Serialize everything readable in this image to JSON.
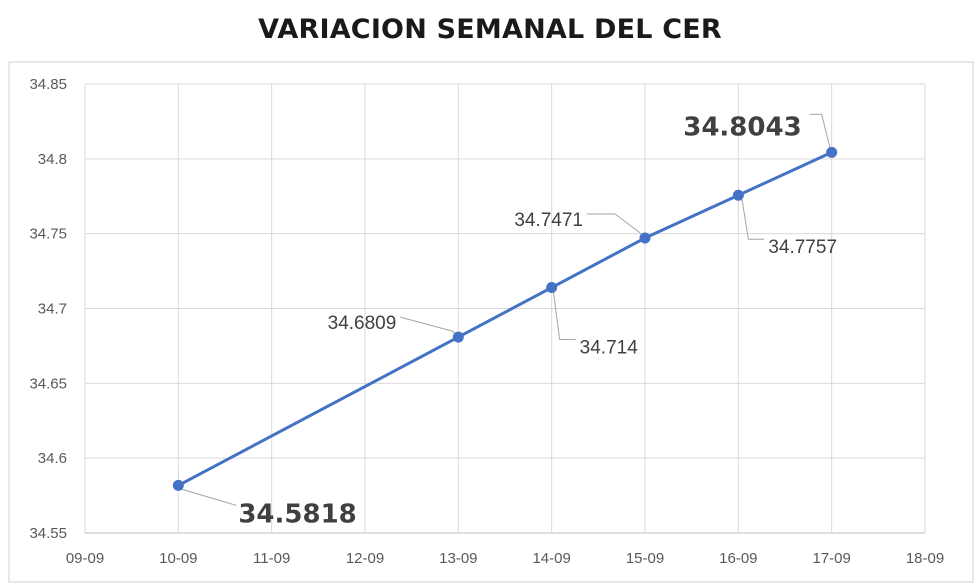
{
  "title": "VARIACION SEMANAL DEL CER",
  "chart_data": {
    "type": "line",
    "title": "VARIACION SEMANAL DEL CER",
    "xlabel": "",
    "ylabel": "",
    "x_ticks": [
      "09-09",
      "10-09",
      "11-09",
      "12-09",
      "13-09",
      "14-09",
      "15-09",
      "16-09",
      "17-09",
      "18-09"
    ],
    "y_ticks": [
      "34.55",
      "34.6",
      "34.65",
      "34.7",
      "34.75",
      "34.8",
      "34.85"
    ],
    "ylim": [
      34.55,
      34.85
    ],
    "grid": true,
    "legend": "none",
    "series": [
      {
        "color": "#4472C4",
        "points": [
          {
            "x": "10-09",
            "y": 34.5818,
            "label": "34.5818",
            "emphasis": true
          },
          {
            "x": "13-09",
            "y": 34.6809,
            "label": "34.6809",
            "emphasis": false
          },
          {
            "x": "14-09",
            "y": 34.714,
            "label": "34.714",
            "emphasis": false
          },
          {
            "x": "15-09",
            "y": 34.7471,
            "label": "34.7471",
            "emphasis": false
          },
          {
            "x": "16-09",
            "y": 34.7757,
            "label": "34.7757",
            "emphasis": false
          },
          {
            "x": "17-09",
            "y": 34.8043,
            "label": "34.8043",
            "emphasis": true
          }
        ]
      }
    ]
  }
}
